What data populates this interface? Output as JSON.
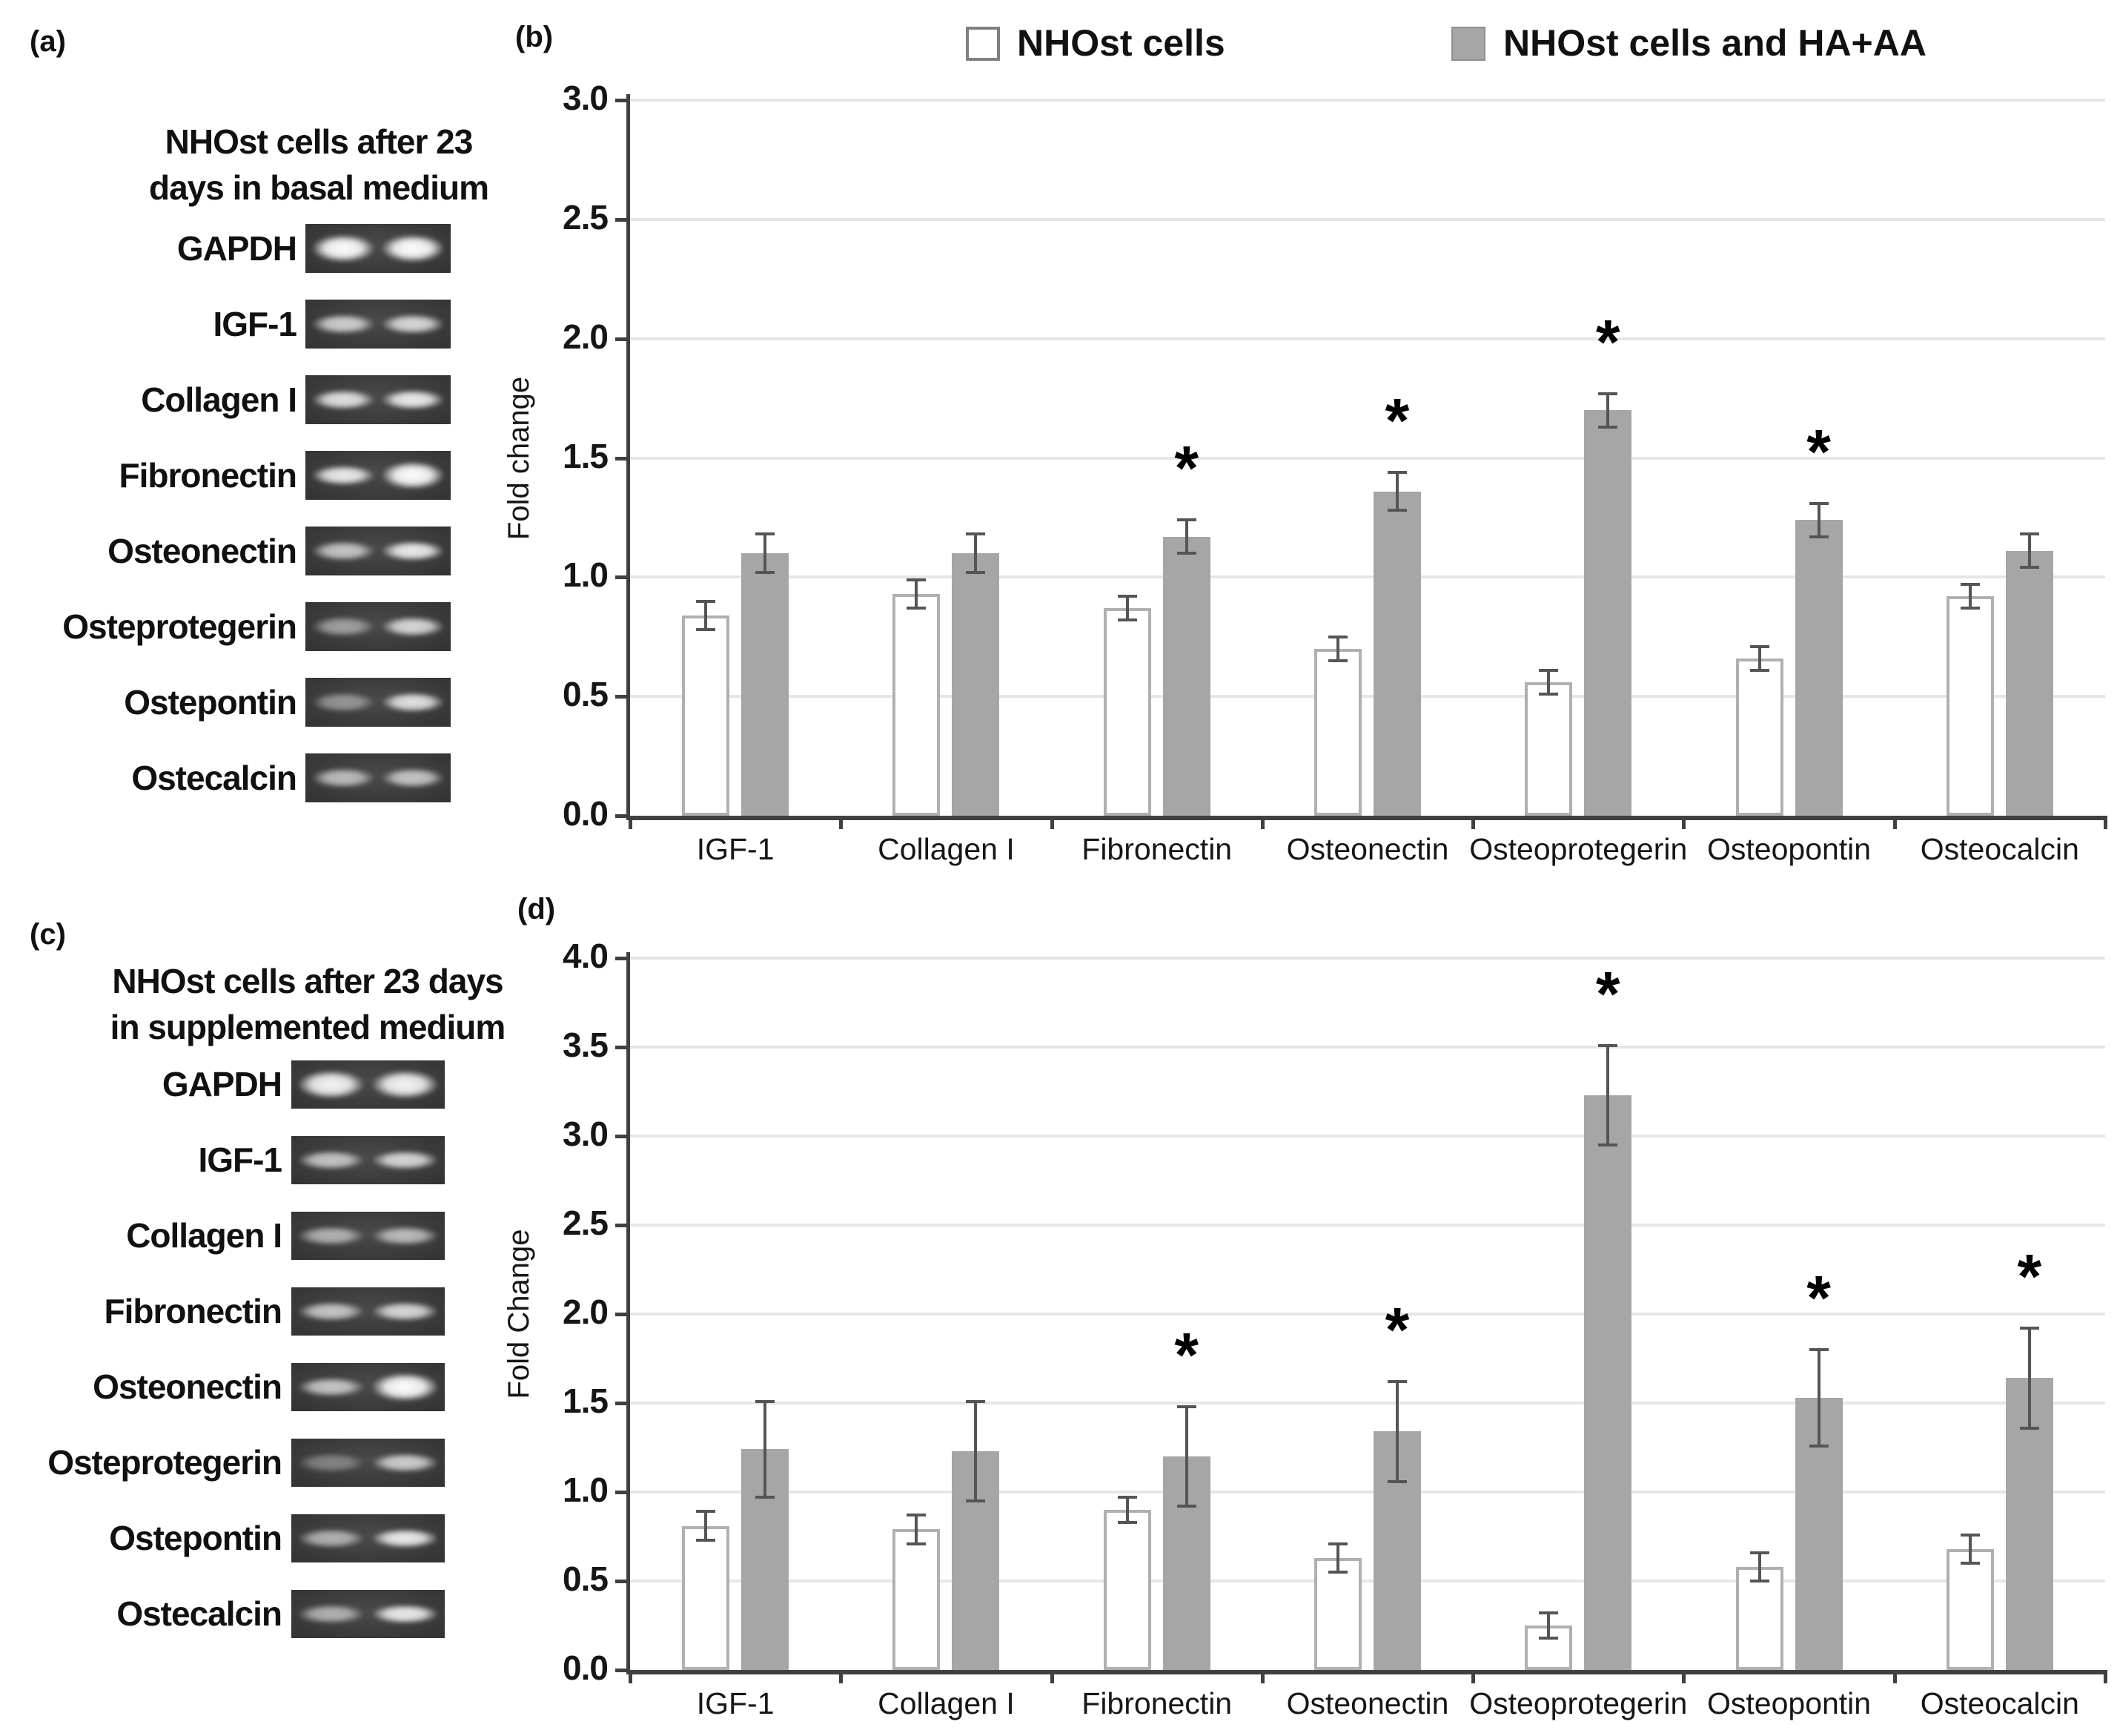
{
  "panel_a": {
    "label": "(a)",
    "title_line1": "NHOst cells after 23",
    "title_line2": "days in basal medium",
    "genes": [
      "GAPDH",
      "IGF-1",
      "Collagen I",
      "Fibronectin",
      "Osteonectin",
      "Osteprotegerin",
      "Ostepontin",
      "Ostecalcin"
    ],
    "lane_intensities": [
      [
        1.0,
        1.0
      ],
      [
        0.75,
        0.8
      ],
      [
        0.85,
        0.9
      ],
      [
        0.9,
        1.0
      ],
      [
        0.7,
        0.9
      ],
      [
        0.5,
        0.8
      ],
      [
        0.45,
        0.85
      ],
      [
        0.65,
        0.7
      ]
    ]
  },
  "panel_b": {
    "label": "(b)"
  },
  "panel_c": {
    "label": "(c)",
    "title_line1": "NHOst cells after 23 days",
    "title_line2": "in supplemented medium",
    "genes": [
      "GAPDH",
      "IGF-1",
      "Collagen I",
      "Fibronectin",
      "Osteonectin",
      "Osteprotegerin",
      "Ostepontin",
      "Ostecalcin"
    ],
    "lane_intensities": [
      [
        0.95,
        0.95
      ],
      [
        0.7,
        0.8
      ],
      [
        0.6,
        0.65
      ],
      [
        0.7,
        0.8
      ],
      [
        0.7,
        1.0
      ],
      [
        0.35,
        0.75
      ],
      [
        0.6,
        0.9
      ],
      [
        0.6,
        0.9
      ]
    ]
  },
  "panel_d": {
    "label": "(d)"
  },
  "legend": {
    "items": [
      {
        "label": "NHOst cells",
        "fill": "#ffffff"
      },
      {
        "label": "NHOst cells and HA+AA",
        "fill": "#a6a6a6"
      }
    ]
  },
  "colors": {
    "bar_white": "#ffffff",
    "bar_gray": "#a6a6a6",
    "bar_outline": "#b0b0b0",
    "axis": "#404040",
    "gridline": "#e6e6e6",
    "error_bar": "#555555"
  },
  "chart_data": [
    {
      "type": "bar",
      "panel": "b",
      "title": "",
      "xlabel": "",
      "ylabel": "Fold change",
      "ylim": [
        0,
        3.0
      ],
      "ytick_step": 0.5,
      "yticks": [
        "0.0",
        "0.5",
        "1.0",
        "1.5",
        "2.0",
        "2.5",
        "3.0"
      ],
      "grid": true,
      "legend_position": "top",
      "categories": [
        "IGF-1",
        "Collagen I",
        "Fibronectin",
        "Osteonectin",
        "Osteoprotegerin",
        "Osteopontin",
        "Osteocalcin"
      ],
      "series": [
        {
          "name": "NHOst cells",
          "values": [
            0.84,
            0.93,
            0.87,
            0.7,
            0.56,
            0.66,
            0.92
          ],
          "errors": [
            0.06,
            0.06,
            0.05,
            0.05,
            0.05,
            0.05,
            0.05
          ]
        },
        {
          "name": "NHOst cells and HA+AA",
          "values": [
            1.1,
            1.1,
            1.17,
            1.36,
            1.7,
            1.24,
            1.11
          ],
          "errors": [
            0.08,
            0.08,
            0.07,
            0.08,
            0.07,
            0.07,
            0.07
          ]
        }
      ],
      "significance_on_series2": [
        false,
        false,
        true,
        true,
        true,
        true,
        false
      ]
    },
    {
      "type": "bar",
      "panel": "d",
      "title": "",
      "xlabel": "",
      "ylabel": "Fold Change",
      "ylim": [
        0,
        4.0
      ],
      "ytick_step": 0.5,
      "yticks": [
        "0.0",
        "0.5",
        "1.0",
        "1.5",
        "2.0",
        "2.5",
        "3.0",
        "3.5",
        "4.0"
      ],
      "grid": true,
      "legend_position": "top",
      "categories": [
        "IGF-1",
        "Collagen I",
        "Fibronectin",
        "Osteonectin",
        "Osteoprotegerin",
        "Osteopontin",
        "Osteocalcin"
      ],
      "series": [
        {
          "name": "NHOst cells",
          "values": [
            0.81,
            0.79,
            0.9,
            0.63,
            0.25,
            0.58,
            0.68
          ],
          "errors": [
            0.08,
            0.08,
            0.07,
            0.08,
            0.07,
            0.08,
            0.08
          ]
        },
        {
          "name": "NHOst cells and HA+AA",
          "values": [
            1.24,
            1.23,
            1.2,
            1.34,
            3.23,
            1.53,
            1.64
          ],
          "errors": [
            0.27,
            0.28,
            0.28,
            0.28,
            0.28,
            0.27,
            0.28
          ]
        }
      ],
      "significance_on_series2": [
        false,
        false,
        true,
        true,
        true,
        true,
        true
      ]
    }
  ]
}
